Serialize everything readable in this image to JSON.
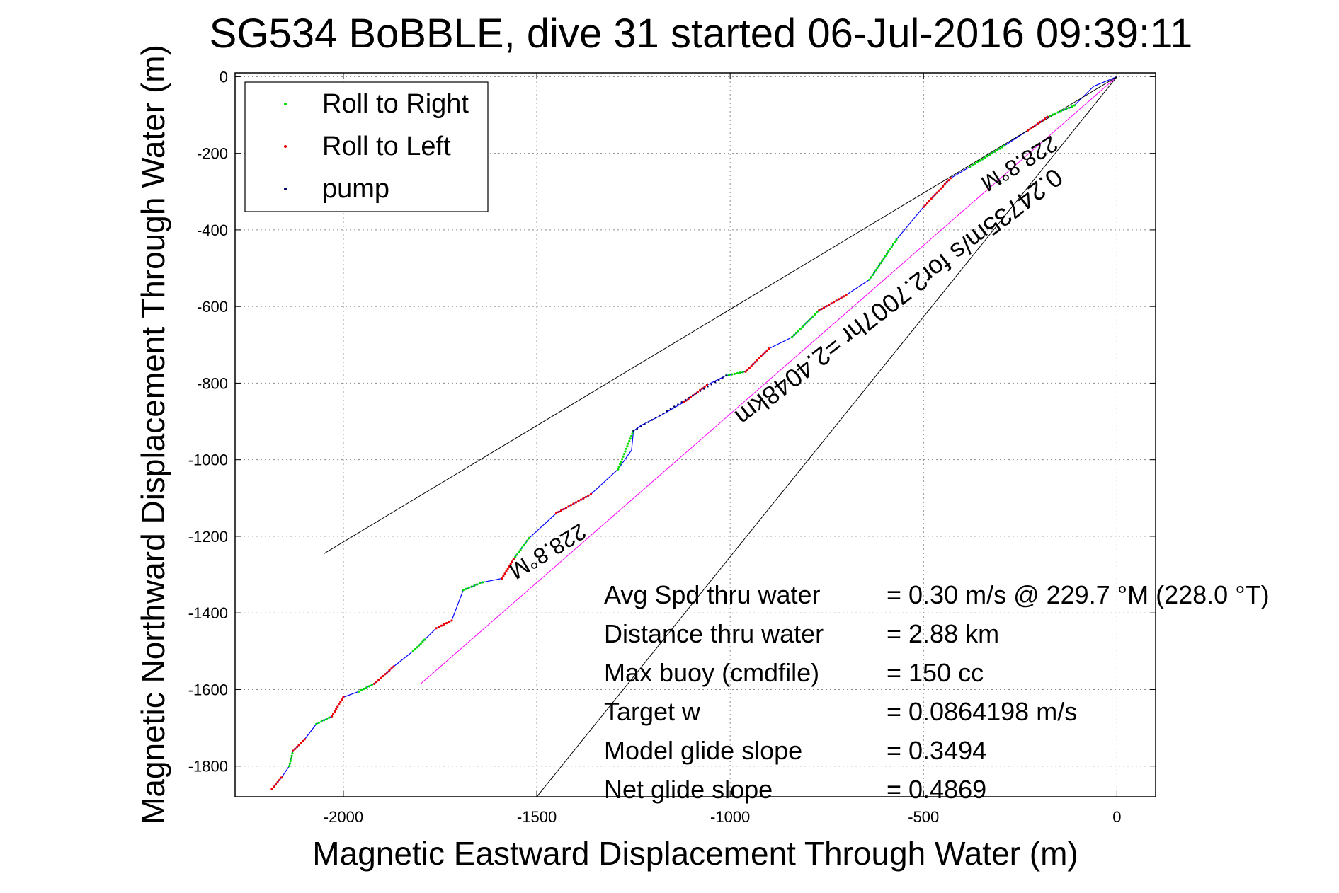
{
  "chart_data": {
    "type": "line",
    "title": "SG534 BoBBLE, dive 31 started 06-Jul-2016 09:39:11",
    "xlabel": "Magnetic Eastward Displacement Through Water (m)",
    "ylabel": "Magnetic Northward Displacement Through Water (m)",
    "xlim": [
      -2280,
      100
    ],
    "ylim": [
      -1880,
      10
    ],
    "xticks": [
      -2000,
      -1500,
      -1000,
      -500,
      0
    ],
    "yticks": [
      0,
      -200,
      -400,
      -600,
      -800,
      -1000,
      -1200,
      -1400,
      -1600,
      -1800
    ],
    "grid": true,
    "legend_placement": "top-left",
    "legend": [
      {
        "label": "Roll to Right",
        "color": "#00dd00"
      },
      {
        "label": "Roll to Left",
        "color": "#ee0000"
      },
      {
        "label": "pump",
        "color": "#000066"
      }
    ],
    "colors": {
      "track": "#0000ff",
      "rhumb": "#ff00ff",
      "envelope": "#000000",
      "roll_right": "#00dd00",
      "roll_left": "#ee0000",
      "pump": "#000066"
    },
    "series": [
      {
        "name": "track",
        "points": [
          [
            0,
            0
          ],
          [
            -60,
            -25
          ],
          [
            -110,
            -75
          ],
          [
            -180,
            -105
          ],
          [
            -230,
            -140
          ],
          [
            -290,
            -180
          ],
          [
            -380,
            -235
          ],
          [
            -430,
            -265
          ],
          [
            -500,
            -340
          ],
          [
            -570,
            -425
          ],
          [
            -640,
            -530
          ],
          [
            -700,
            -570
          ],
          [
            -770,
            -610
          ],
          [
            -840,
            -680
          ],
          [
            -900,
            -710
          ],
          [
            -960,
            -770
          ],
          [
            -1010,
            -780
          ],
          [
            -1060,
            -805
          ],
          [
            -1120,
            -850
          ],
          [
            -1180,
            -885
          ],
          [
            -1230,
            -910
          ],
          [
            -1250,
            -925
          ],
          [
            -1255,
            -975
          ],
          [
            -1290,
            -1025
          ],
          [
            -1360,
            -1090
          ],
          [
            -1450,
            -1140
          ],
          [
            -1520,
            -1205
          ],
          [
            -1560,
            -1260
          ],
          [
            -1590,
            -1310
          ],
          [
            -1640,
            -1320
          ],
          [
            -1690,
            -1340
          ],
          [
            -1720,
            -1420
          ],
          [
            -1760,
            -1440
          ],
          [
            -1790,
            -1470
          ],
          [
            -1820,
            -1500
          ],
          [
            -1870,
            -1540
          ],
          [
            -1920,
            -1585
          ],
          [
            -1960,
            -1605
          ],
          [
            -2000,
            -1620
          ],
          [
            -2030,
            -1670
          ],
          [
            -2070,
            -1690
          ],
          [
            -2100,
            -1730
          ],
          [
            -2130,
            -1760
          ],
          [
            -2140,
            -1800
          ],
          [
            -2160,
            -1830
          ],
          [
            -2185,
            -1860
          ]
        ]
      },
      {
        "name": "rhumb",
        "points": [
          [
            0,
            0
          ],
          [
            -1800,
            -1585
          ]
        ]
      },
      {
        "name": "envelope-upper",
        "points": [
          [
            0,
            0
          ],
          [
            -2050,
            -1245
          ]
        ]
      },
      {
        "name": "envelope-lower",
        "points": [
          [
            0,
            0
          ],
          [
            -1500,
            -1880
          ]
        ]
      }
    ],
    "roll_right_ranges": [
      [
        2,
        3
      ],
      [
        5,
        6
      ],
      [
        9,
        10
      ],
      [
        12,
        13
      ],
      [
        15,
        16
      ],
      [
        21,
        23
      ],
      [
        26,
        27
      ],
      [
        29,
        30
      ],
      [
        33,
        34
      ],
      [
        36,
        37
      ],
      [
        39,
        40
      ],
      [
        42,
        43
      ]
    ],
    "roll_left_ranges": [
      [
        3,
        4
      ],
      [
        7,
        8
      ],
      [
        11,
        12
      ],
      [
        14,
        15
      ],
      [
        17,
        18
      ],
      [
        24,
        25
      ],
      [
        27,
        28
      ],
      [
        31,
        32
      ],
      [
        35,
        36
      ],
      [
        38,
        39
      ],
      [
        41,
        42
      ],
      [
        44,
        45
      ]
    ],
    "pump_ranges": [
      [
        16,
        21
      ]
    ],
    "annotations": {
      "heading_top": "228.8°M",
      "heading_bottom": "228.8°M",
      "rhumb_label": "0.24735m/s for2.7007hr =2.4048km"
    },
    "stats": [
      {
        "label": "Avg Spd thru water",
        "value": "=  0.30 m/s @ 229.7 °M (228.0 °T)"
      },
      {
        "label": "Distance thru water",
        "value": "=  2.88 km"
      },
      {
        "label": "Max buoy (cmdfile)",
        "value": "= 150 cc"
      },
      {
        "label": "Target w",
        "value": "= 0.0864198 m/s"
      },
      {
        "label": "Model glide slope",
        "value": "= 0.3494"
      },
      {
        "label": "Net glide slope",
        "value": "= 0.4869"
      }
    ]
  }
}
